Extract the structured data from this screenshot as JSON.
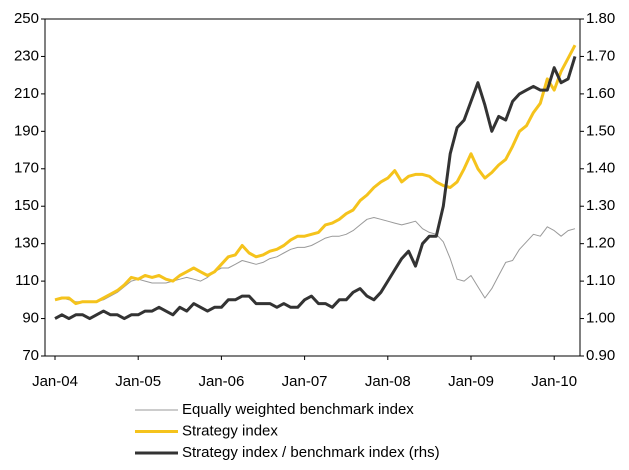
{
  "chart_data": {
    "type": "line",
    "categories": [
      "Jan-04",
      null,
      null,
      null,
      null,
      null,
      null,
      null,
      null,
      null,
      null,
      null,
      "Jan-05",
      null,
      null,
      null,
      null,
      null,
      null,
      null,
      null,
      null,
      null,
      null,
      "Jan-06",
      null,
      null,
      null,
      null,
      null,
      null,
      null,
      null,
      null,
      null,
      null,
      "Jan-07",
      null,
      null,
      null,
      null,
      null,
      null,
      null,
      null,
      null,
      null,
      null,
      "Jan-08",
      null,
      null,
      null,
      null,
      null,
      null,
      null,
      null,
      null,
      null,
      null,
      "Jan-09",
      null,
      null,
      null,
      null,
      null,
      null,
      null,
      null,
      null,
      null,
      null,
      "Jan-10",
      null,
      null,
      null
    ],
    "ylim": [
      70,
      250
    ],
    "yticks": [
      70,
      90,
      110,
      130,
      150,
      170,
      190,
      210,
      230,
      250
    ],
    "y2lim": [
      0.9,
      1.8
    ],
    "y2ticks": [
      {
        "value": 0.9,
        "label": "0.90"
      },
      {
        "value": 1.0,
        "label": "1.00"
      },
      {
        "value": 1.1,
        "label": "1.10"
      },
      {
        "value": 1.2,
        "label": "1.20"
      },
      {
        "value": 1.3,
        "label": "1.30"
      },
      {
        "value": 1.4,
        "label": "1.40"
      },
      {
        "value": 1.5,
        "label": "1.50"
      },
      {
        "value": 1.6,
        "label": "1.60"
      },
      {
        "value": 1.7,
        "label": "1.70"
      },
      {
        "value": 1.8,
        "label": "1.80"
      }
    ],
    "series": [
      {
        "name": "Equally weighted benchmark index",
        "color": "#9a9a9a",
        "width": 1,
        "values": [
          100,
          101,
          100,
          99,
          99,
          99,
          99,
          100,
          102,
          104,
          107,
          110,
          111,
          110,
          109,
          109,
          109,
          110,
          111,
          112,
          111,
          110,
          112,
          115,
          117,
          117,
          119,
          121,
          120,
          119,
          120,
          122,
          123,
          125,
          127,
          128,
          128,
          129,
          131,
          133,
          134,
          134,
          135,
          137,
          140,
          143,
          144,
          143,
          142,
          141,
          140,
          141,
          142,
          138,
          136,
          135,
          131,
          122,
          111,
          110,
          113,
          107,
          101,
          106,
          113,
          120,
          121,
          127,
          131,
          135,
          134,
          139,
          137,
          134,
          137,
          138
        ]
      },
      {
        "name": "Strategy index",
        "color": "#f5c31c",
        "width": 3,
        "values": [
          100,
          101,
          101,
          98,
          99,
          99,
          99,
          101,
          103,
          105,
          108,
          112,
          111,
          113,
          112,
          113,
          111,
          110,
          113,
          115,
          117,
          115,
          113,
          115,
          119,
          123,
          124,
          129,
          125,
          123,
          124,
          126,
          127,
          129,
          132,
          134,
          134,
          135,
          136,
          140,
          141,
          143,
          146,
          148,
          153,
          156,
          160,
          163,
          165,
          169,
          163,
          166,
          167,
          167,
          166,
          163,
          161,
          160,
          163,
          170,
          178,
          170,
          165,
          168,
          172,
          175,
          182,
          190,
          193,
          200,
          205,
          218,
          212,
          222,
          229,
          236
        ]
      },
      {
        "name": "Strategy index / benchmark index (rhs)",
        "color": "#333333",
        "width": 3,
        "axis": "y2",
        "values": [
          1.0,
          1.01,
          1.0,
          1.01,
          1.01,
          1.0,
          1.01,
          1.02,
          1.01,
          1.01,
          1.0,
          1.01,
          1.01,
          1.02,
          1.02,
          1.03,
          1.02,
          1.01,
          1.03,
          1.02,
          1.04,
          1.03,
          1.02,
          1.03,
          1.03,
          1.05,
          1.05,
          1.06,
          1.06,
          1.04,
          1.04,
          1.04,
          1.03,
          1.04,
          1.03,
          1.03,
          1.05,
          1.06,
          1.04,
          1.04,
          1.03,
          1.05,
          1.05,
          1.07,
          1.08,
          1.06,
          1.05,
          1.07,
          1.1,
          1.13,
          1.16,
          1.18,
          1.14,
          1.2,
          1.22,
          1.22,
          1.3,
          1.44,
          1.51,
          1.53,
          1.58,
          1.63,
          1.57,
          1.5,
          1.54,
          1.53,
          1.58,
          1.6,
          1.61,
          1.62,
          1.61,
          1.61,
          1.67,
          1.63,
          1.64,
          1.7
        ]
      }
    ]
  }
}
